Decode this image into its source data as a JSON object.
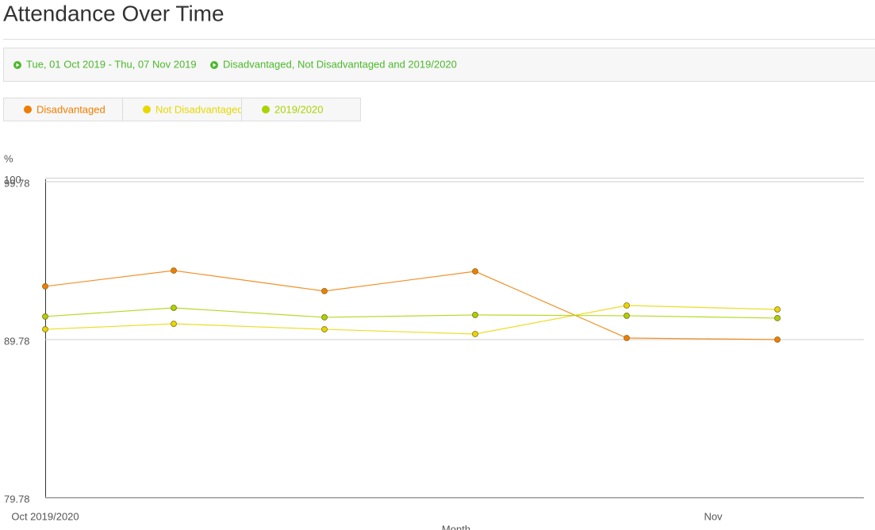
{
  "chart_data": {
    "type": "line",
    "title": "Attendance Over Time",
    "filters": [
      "Tue, 01 Oct 2019 - Thu, 07 Nov 2019",
      "Disadvantaged, Not Disadvantaged and 2019/2020"
    ],
    "y_label": "%",
    "x_label": "Month",
    "categories": [
      "Oct 2019/2020",
      null,
      null,
      null,
      "Nov",
      null
    ],
    "series": [
      {
        "name": "Disadvantaged",
        "color": "#f07d00",
        "values": [
          93.15,
          94.15,
          92.85,
          94.1,
          89.88,
          89.78
        ]
      },
      {
        "name": "Not Disadvantaged",
        "color": "#e6d800",
        "values": [
          90.43,
          90.78,
          90.43,
          90.13,
          91.94,
          91.69
        ]
      },
      {
        "name": "2019/2020",
        "color": "#a8d400",
        "values": [
          91.24,
          91.79,
          91.19,
          91.34,
          91.29,
          91.14
        ]
      }
    ],
    "ylim": [
      79.78,
      100
    ],
    "yticks": [
      79.78,
      89.78,
      99.78,
      100
    ],
    "grid": true
  }
}
